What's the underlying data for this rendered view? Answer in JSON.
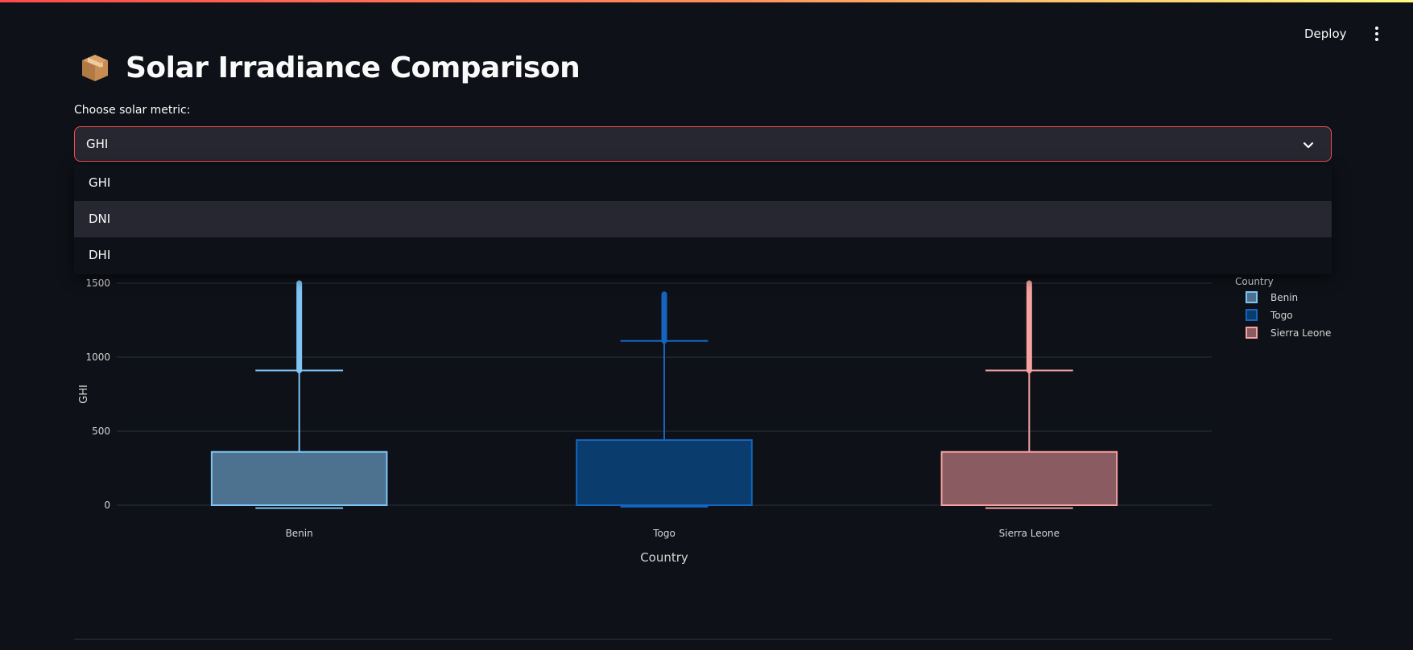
{
  "app": {
    "deploy_label": "Deploy",
    "menu_icon": "kebab-menu-icon",
    "title_icon": "package-icon",
    "title": "Solar Irradiance Comparison"
  },
  "select": {
    "label": "Choose solar metric:",
    "value": "GHI",
    "options": [
      "GHI",
      "DNI",
      "DHI"
    ],
    "highlighted": "DNI"
  },
  "colors": {
    "accent": "#ff4b4b",
    "background": "#0e1117",
    "widget_bg": "#262730",
    "Benin": "#7fc4f5",
    "Togo": "#1565c0",
    "Sierra Leone": "#f4a2a2"
  },
  "chart_data": {
    "type": "box",
    "title": "",
    "xlabel": "Country",
    "ylabel": "GHI",
    "yticks": [
      0,
      500,
      1000,
      1500
    ],
    "ylim": [
      -60,
      1510
    ],
    "grid": true,
    "legend_title": "Country",
    "legend_position": "top-right",
    "categories": [
      "Benin",
      "Togo",
      "Sierra Leone"
    ],
    "series": [
      {
        "name": "Benin",
        "q1": 0,
        "median": 0,
        "q3": 360,
        "lower_fence": -20,
        "upper_fence": 910,
        "outlier_max": 1500,
        "color": "#7fc4f5",
        "fill": "#4d7290"
      },
      {
        "name": "Togo",
        "q1": 0,
        "median": 0,
        "q3": 440,
        "lower_fence": -10,
        "upper_fence": 1110,
        "outlier_max": 1425,
        "color": "#1565c0",
        "fill": "#0a3d6e"
      },
      {
        "name": "Sierra Leone",
        "q1": 0,
        "median": 0,
        "q3": 360,
        "lower_fence": -20,
        "upper_fence": 910,
        "outlier_max": 1500,
        "color": "#f4a2a2",
        "fill": "#8a5c62"
      }
    ]
  }
}
